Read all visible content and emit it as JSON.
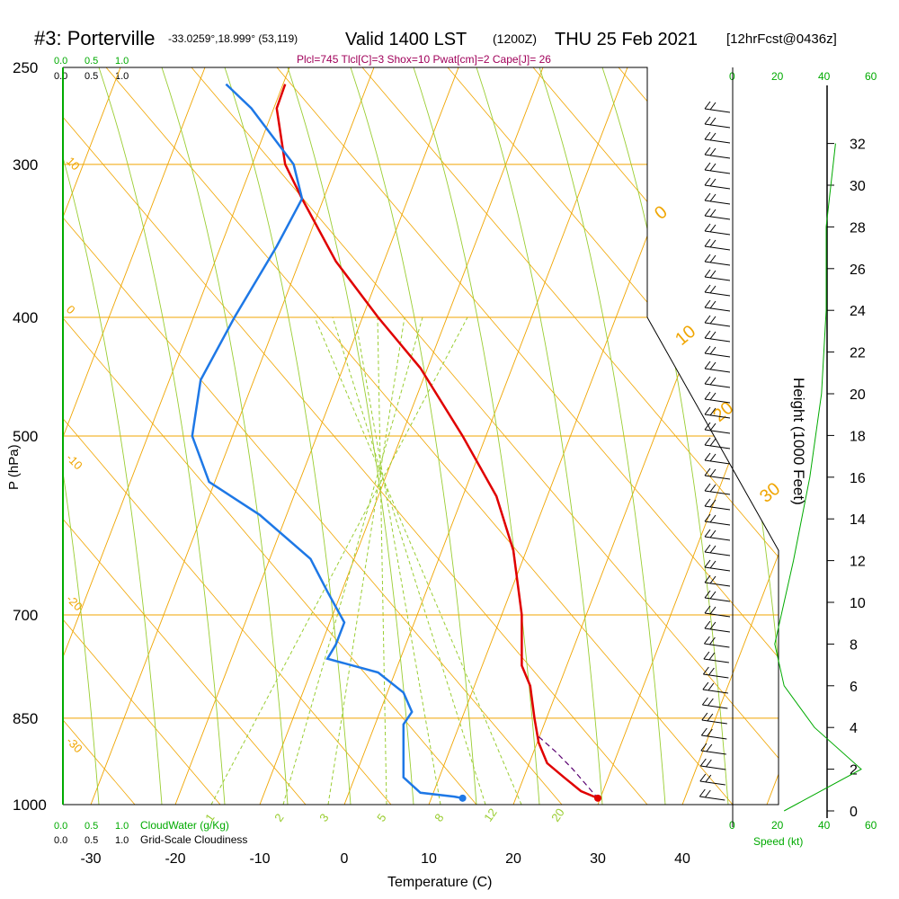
{
  "header": {
    "station": "#3: Porterville",
    "coords": "-33.0259°,18.999° (53,119)",
    "valid": "Valid 1400 LST",
    "z": "(1200Z)",
    "date": "THU 25 Feb 2021",
    "fcst": "[12hrFcst@0436z]",
    "indices": "Plcl=745 Tlcl[C]=3 Shox=10 Pwat[cm]=2 Cape[J]= 26"
  },
  "axes": {
    "ylabel": "P (hPa)",
    "xlabel": "Temperature (C)",
    "right_label": "Height (1000 Feet)",
    "speed_label": "Speed (kt)",
    "cloud_water_label": "CloudWater (g/Kg)",
    "cloudiness_label": "Grid-Scale Cloudiness"
  },
  "scales": {
    "cloud_top": [
      "0.0",
      "0.5",
      "1.0"
    ],
    "cloudiness_top": [
      "0.0",
      "0.5",
      "1.0"
    ],
    "speed_top": [
      "0",
      "20",
      "40",
      "60"
    ],
    "cloud_bottom": [
      "0.0",
      "0.5",
      "1.0"
    ],
    "cloudiness_bottom": [
      "0.0",
      "0.5",
      "1.0"
    ],
    "speed_bottom": [
      "0",
      "20",
      "40",
      "60"
    ]
  },
  "colors": {
    "isotherm": "#f0a500",
    "dryadiabat": "#9acd32",
    "temperature": "#e00000",
    "dewpoint": "#1e78e6",
    "green": "#00aa00",
    "indices": "#a0005a"
  },
  "chart_data": {
    "type": "line",
    "pressure_ticks": [
      250,
      300,
      400,
      500,
      700,
      850,
      1000
    ],
    "temp_ticks": [
      -30,
      -20,
      -10,
      0,
      10,
      20,
      30,
      40
    ],
    "height_ticks": [
      0,
      2,
      4,
      6,
      8,
      10,
      12,
      14,
      16,
      18,
      20,
      22,
      24,
      26,
      28,
      30,
      32
    ],
    "mixing_ratio_labels": [
      "1",
      "2",
      "3",
      "5",
      "8",
      "12",
      "20"
    ],
    "isotherm_labels": [
      "0",
      "10",
      "20",
      "30"
    ],
    "skew_labels": [
      "10",
      "0",
      "-10",
      "-20",
      "-30"
    ],
    "series": [
      {
        "name": "Temperature",
        "points": [
          [
            30,
            988
          ],
          [
            28,
            975
          ],
          [
            26,
            950
          ],
          [
            24,
            925
          ],
          [
            23,
            890
          ],
          [
            22.5,
            850
          ],
          [
            22,
            800
          ],
          [
            21,
            770
          ],
          [
            21,
            700
          ],
          [
            20,
            620
          ],
          [
            18,
            560
          ],
          [
            14,
            500
          ],
          [
            9,
            440
          ],
          [
            4,
            400
          ],
          [
            -1,
            360
          ],
          [
            -5,
            320
          ],
          [
            -7,
            300
          ],
          [
            -8,
            270
          ],
          [
            -7,
            258
          ]
        ]
      },
      {
        "name": "Dewpoint",
        "points": [
          [
            14,
            988
          ],
          [
            13,
            985
          ],
          [
            9,
            978
          ],
          [
            7,
            950
          ],
          [
            7,
            900
          ],
          [
            7,
            860
          ],
          [
            8,
            840
          ],
          [
            7,
            810
          ],
          [
            4,
            780
          ],
          [
            -2,
            760
          ],
          [
            -1,
            740
          ],
          [
            0,
            710
          ],
          [
            -2,
            670
          ],
          [
            -4,
            630
          ],
          [
            -10,
            580
          ],
          [
            -16,
            545
          ],
          [
            -18,
            500
          ],
          [
            -17,
            450
          ],
          [
            -13,
            400
          ],
          [
            -8,
            350
          ],
          [
            -5,
            320
          ],
          [
            -6,
            300
          ],
          [
            -11,
            270
          ],
          [
            -14,
            258
          ]
        ]
      }
    ],
    "surface_points": [
      {
        "name": "Temperature",
        "t": 30,
        "p": 988
      },
      {
        "name": "Dewpoint",
        "t": 14,
        "p": 988
      }
    ],
    "parcel": [
      [
        23,
        880
      ],
      [
        25,
        905
      ],
      [
        27,
        935
      ],
      [
        29,
        970
      ],
      [
        30,
        988
      ]
    ],
    "height_profile": [
      [
        0,
        22
      ],
      [
        2,
        55
      ],
      [
        4,
        35
      ],
      [
        6,
        22
      ],
      [
        8,
        18
      ],
      [
        12,
        26
      ],
      [
        16,
        33
      ],
      [
        20,
        38
      ],
      [
        24,
        40
      ],
      [
        28,
        40
      ],
      [
        32,
        44
      ]
    ],
    "wind_barbs_levels": 46
  }
}
